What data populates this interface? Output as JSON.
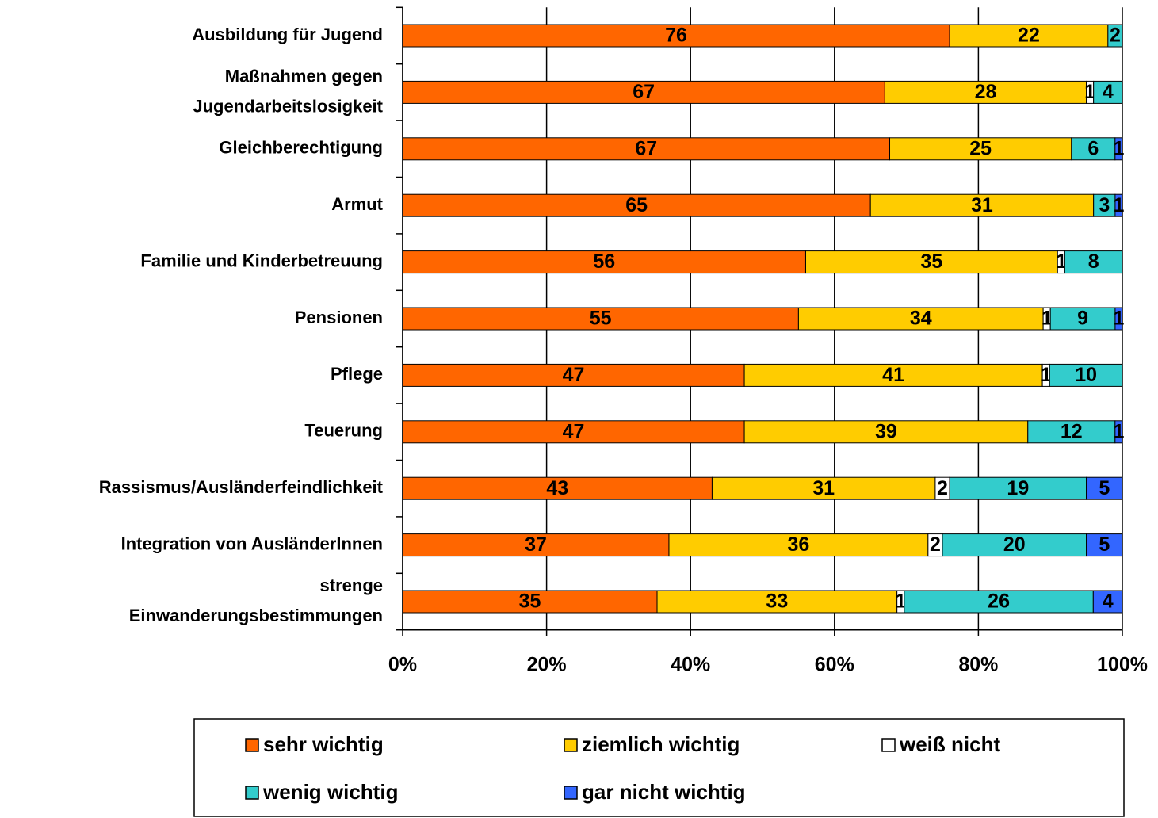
{
  "chart_data": {
    "type": "stacked_percent_bar",
    "orientation": "horizontal",
    "categories": [
      "Ausbildung für Jugend",
      "Maßnahmen gegen\nJugendarbeitslosigkeit",
      "Gleichberechtigung",
      "Armut",
      "Familie und Kinderbetreuung",
      "Pensionen",
      "Pflege",
      "Teuerung",
      "Rassismus/Ausländerfeindlichkeit",
      "Integration von AusländerInnen",
      "strenge\nEinwanderungsbestimmungen"
    ],
    "series": [
      {
        "name": "sehr wichtig",
        "color": "#ff6600",
        "values": [
          76,
          67,
          67,
          65,
          56,
          55,
          47,
          47,
          43,
          37,
          35
        ]
      },
      {
        "name": "ziemlich wichtig",
        "color": "#ffcc00",
        "values": [
          22,
          28,
          25,
          31,
          35,
          34,
          41,
          39,
          31,
          36,
          33
        ]
      },
      {
        "name": "weiß nicht",
        "color": "#ffffff",
        "values": [
          null,
          1,
          null,
          null,
          1,
          1,
          1,
          null,
          2,
          2,
          1
        ]
      },
      {
        "name": "wenig wichtig",
        "color": "#33cccc",
        "values": [
          2,
          4,
          6,
          3,
          8,
          9,
          10,
          12,
          19,
          20,
          26
        ]
      },
      {
        "name": "gar nicht wichtig",
        "color": "#3366ff",
        "values": [
          null,
          null,
          1,
          1,
          null,
          1,
          null,
          1,
          5,
          5,
          4
        ]
      }
    ],
    "xlim": [
      0,
      100
    ],
    "xticks": [
      {
        "value": 0,
        "label": "0%"
      },
      {
        "value": 20,
        "label": "20%"
      },
      {
        "value": 40,
        "label": "40%"
      },
      {
        "value": 60,
        "label": "60%"
      },
      {
        "value": 80,
        "label": "80%"
      },
      {
        "value": 100,
        "label": "100%"
      }
    ],
    "grid": true,
    "legend": "bottom"
  }
}
